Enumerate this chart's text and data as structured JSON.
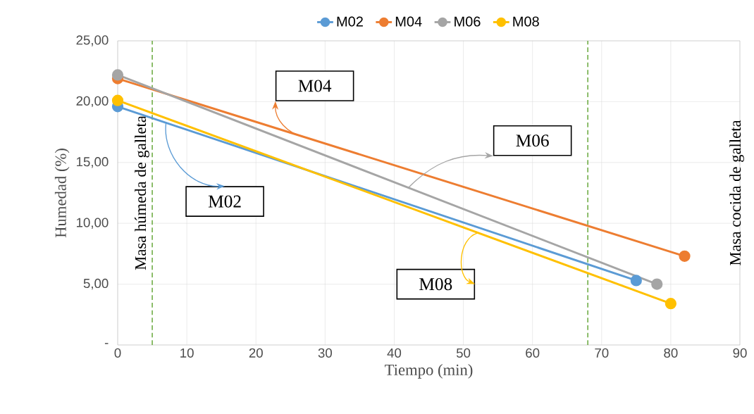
{
  "chart_data": {
    "type": "line",
    "xlabel": "Tiempo (min)",
    "ylabel": "Humedad (%)",
    "series": [
      {
        "name": "M02",
        "color": "#5b9bd5",
        "x": [
          0,
          75
        ],
        "values": [
          19.6,
          5.3
        ]
      },
      {
        "name": "M04",
        "color": "#ed7d31",
        "x": [
          0,
          82
        ],
        "values": [
          21.9,
          7.3
        ]
      },
      {
        "name": "M06",
        "color": "#a5a5a5",
        "x": [
          0,
          78
        ],
        "values": [
          22.2,
          5.0
        ]
      },
      {
        "name": "M08",
        "color": "#ffc000",
        "x": [
          0,
          80
        ],
        "values": [
          20.1,
          3.4
        ]
      }
    ],
    "xlim": [
      0,
      90
    ],
    "xticks": [
      0,
      10,
      20,
      30,
      40,
      50,
      60,
      70,
      80,
      90
    ],
    "ylim": [
      0,
      25
    ],
    "yticks": [
      {
        "value": 0,
        "label": "-"
      },
      {
        "value": 5,
        "label": "5,00"
      },
      {
        "value": 10,
        "label": "10,00"
      },
      {
        "value": 15,
        "label": "15,00"
      },
      {
        "value": 20,
        "label": "20,00"
      },
      {
        "value": 25,
        "label": "25,00"
      }
    ],
    "ref_lines": [
      {
        "axis": "x",
        "value": 5,
        "label": "Masa húmeda de galleta",
        "color": "#70ad47",
        "line_style": "dashed"
      },
      {
        "axis": "x",
        "value": 68,
        "color": "#70ad47",
        "line_style": "dashed"
      }
    ],
    "annotations": [
      {
        "text": "M02",
        "x": 7,
        "y": 18.3
      },
      {
        "text": "M04",
        "x": 27,
        "y": 17.1
      },
      "M06",
      {
        "text": "M08",
        "x": 52,
        "y": 9.2
      },
      "Masa cocida de galleta"
    ],
    "grid": true,
    "legend": "top",
    "marker": "circle",
    "line_style": "solid"
  }
}
